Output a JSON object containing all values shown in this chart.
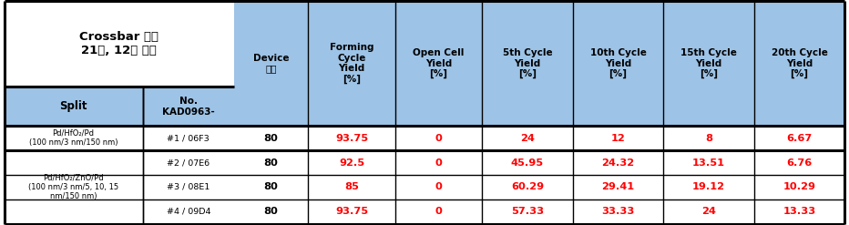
{
  "title_line1": "Crossbar 구조",
  "title_line2": "21년, 12월 진행",
  "header_bg": "#9DC3E6",
  "title_bg": "#FFFFFF",
  "white_bg": "#FFFFFF",
  "border_color": "#000000",
  "red_color": "#FF0000",
  "black_color": "#000000",
  "col_headers": [
    "Device\n개수",
    "Forming\nCycle\nYield\n[%]",
    "Open Cell\nYield\n[%]",
    "5th Cycle\nYield\n[%]",
    "10th Cycle\nYield\n[%]",
    "15th Cycle\nYield\n[%]",
    "20th Cycle\nYield\n[%]"
  ],
  "col_headers_super": [
    "Device\n개수",
    "Forming\nCycle\nYield\n[%]",
    "Open Cell\nYield\n[%]",
    null,
    null,
    null,
    null
  ],
  "split_header": "Split",
  "no_header": "No.\nKAD0963-",
  "rows": [
    {
      "split": "Pd/HfO₂/Pd\n(100 nm/3 nm/150 nm)",
      "no": "#1 / 06F3",
      "device": "80",
      "forming": "93.75",
      "opencell": "0",
      "c5": "24",
      "c10": "12",
      "c15": "8",
      "c20": "6.67"
    },
    {
      "split": "Pd/HfO₂/ZnO/Pd\n(100 nm/3 nm/5, 10, 15\nnm/150 nm)",
      "no": "#2 / 07E6",
      "device": "80",
      "forming": "92.5",
      "opencell": "0",
      "c5": "45.95",
      "c10": "24.32",
      "c15": "13.51",
      "c20": "6.76"
    },
    {
      "split": null,
      "no": "#3 / 08E1",
      "device": "80",
      "forming": "85",
      "opencell": "0",
      "c5": "60.29",
      "c10": "29.41",
      "c15": "19.12",
      "c20": "10.29"
    },
    {
      "split": null,
      "no": "#4 / 09D4",
      "device": "80",
      "forming": "93.75",
      "opencell": "0",
      "c5": "57.33",
      "c10": "33.33",
      "c15": "24",
      "c20": "13.33"
    }
  ],
  "figsize": [
    9.32,
    2.47
  ],
  "dpi": 100
}
